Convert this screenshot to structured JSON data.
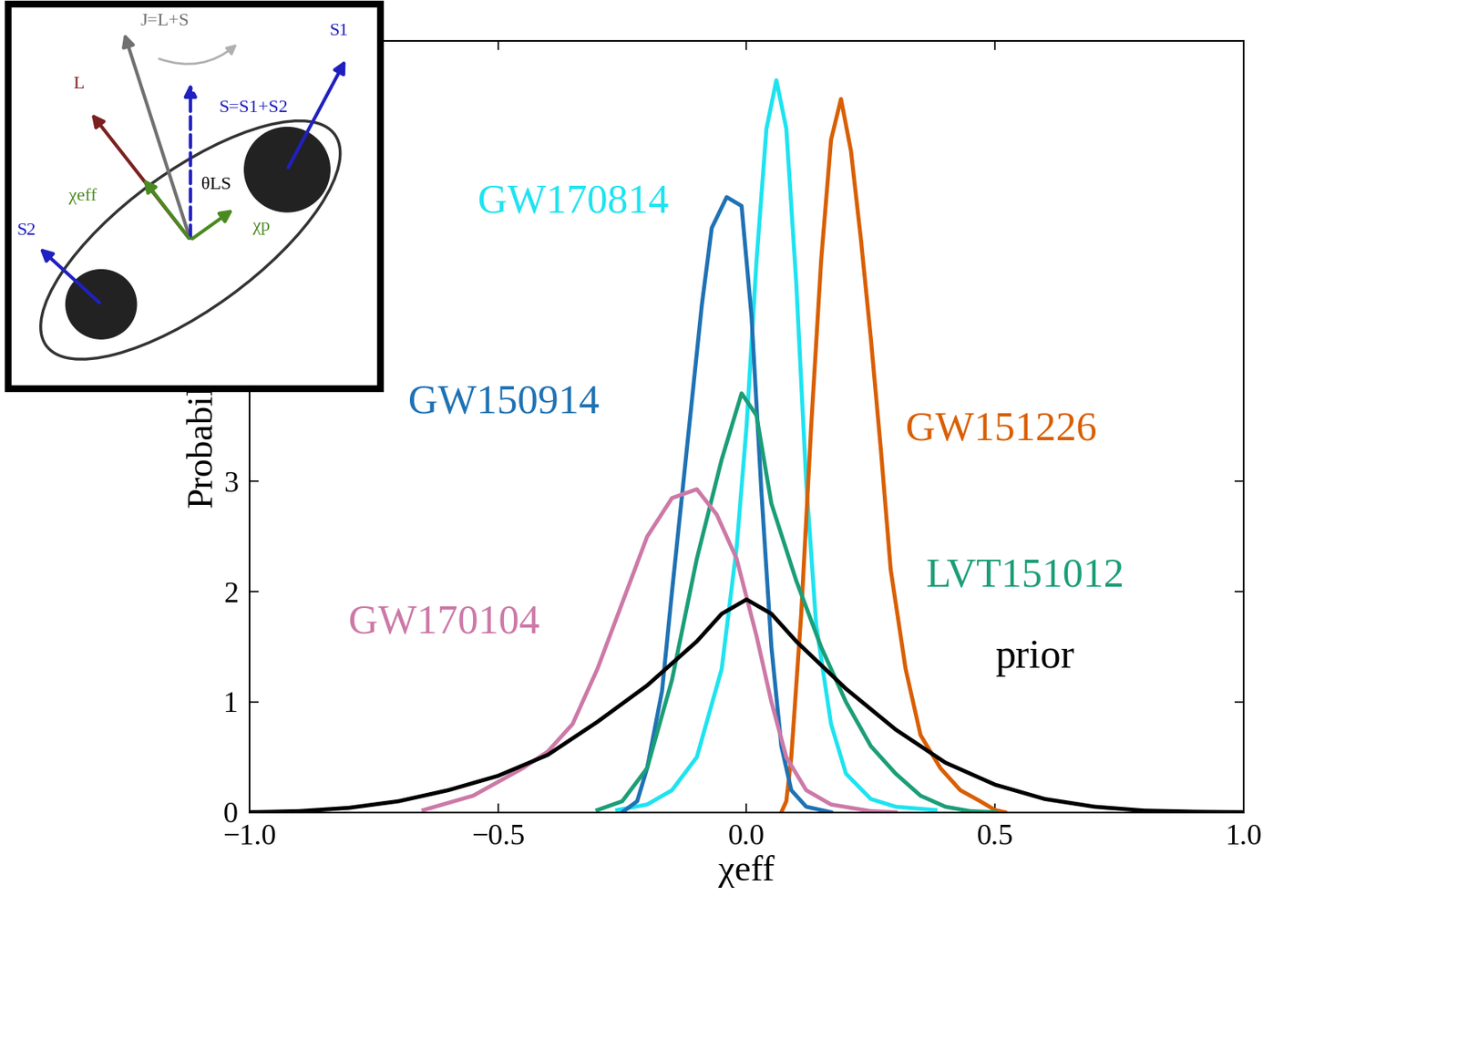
{
  "chart_data": {
    "type": "line",
    "x_label": "χeff",
    "y_label": "Probability",
    "xlim": [
      -1.0,
      1.0
    ],
    "xticks": [
      {
        "value": -1.0,
        "label": "−1.0"
      },
      {
        "value": -0.5,
        "label": "−0.5"
      },
      {
        "value": 0.0,
        "label": "0.0"
      },
      {
        "value": 0.5,
        "label": "0.5"
      },
      {
        "value": 1.0,
        "label": "1.0"
      }
    ],
    "ylim": [
      0,
      7
    ],
    "yticks": [
      0,
      1,
      2,
      3
    ],
    "series": [
      {
        "name": "GW170814",
        "color": "#1ee3f0",
        "x": [
          -0.26,
          -0.2,
          -0.15,
          -0.1,
          -0.05,
          -0.02,
          0.0,
          0.02,
          0.04,
          0.06,
          0.08,
          0.1,
          0.12,
          0.14,
          0.17,
          0.2,
          0.25,
          0.3,
          0.38
        ],
        "values": [
          0.02,
          0.07,
          0.2,
          0.5,
          1.3,
          2.4,
          3.5,
          5.0,
          6.2,
          6.64,
          6.2,
          4.8,
          3.0,
          1.7,
          0.8,
          0.35,
          0.12,
          0.05,
          0.02
        ]
      },
      {
        "name": "GW151226",
        "color": "#d95f02",
        "x": [
          0.07,
          0.08,
          0.09,
          0.11,
          0.13,
          0.15,
          0.17,
          0.19,
          0.21,
          0.23,
          0.25,
          0.27,
          0.29,
          0.32,
          0.35,
          0.39,
          0.43,
          0.47,
          0.5,
          0.52
        ],
        "values": [
          0,
          0.1,
          0.5,
          1.8,
          3.5,
          5.0,
          6.1,
          6.47,
          6.0,
          5.2,
          4.3,
          3.3,
          2.2,
          1.3,
          0.7,
          0.4,
          0.2,
          0.1,
          0.02,
          0
        ]
      },
      {
        "name": "GW150914",
        "color": "#1f72b4",
        "x": [
          -0.25,
          -0.22,
          -0.2,
          -0.17,
          -0.15,
          -0.12,
          -0.09,
          -0.07,
          -0.04,
          -0.01,
          0.01,
          0.03,
          0.05,
          0.07,
          0.09,
          0.12,
          0.17
        ],
        "values": [
          0,
          0.1,
          0.4,
          1.1,
          2.0,
          3.3,
          4.6,
          5.3,
          5.58,
          5.5,
          4.5,
          2.9,
          1.5,
          0.6,
          0.2,
          0.05,
          0
        ]
      },
      {
        "name": "LVT151012",
        "color": "#1b9e77",
        "x": [
          -0.3,
          -0.25,
          -0.2,
          -0.15,
          -0.1,
          -0.05,
          -0.01,
          0.02,
          0.05,
          0.1,
          0.15,
          0.2,
          0.25,
          0.3,
          0.35,
          0.4,
          0.45,
          0.5
        ],
        "values": [
          0.02,
          0.1,
          0.4,
          1.2,
          2.3,
          3.2,
          3.8,
          3.6,
          2.8,
          2.1,
          1.5,
          1.0,
          0.6,
          0.35,
          0.15,
          0.05,
          0.01,
          0
        ]
      },
      {
        "name": "GW170104",
        "color": "#cc79a7",
        "x": [
          -0.65,
          -0.55,
          -0.45,
          -0.4,
          -0.35,
          -0.3,
          -0.25,
          -0.2,
          -0.15,
          -0.1,
          -0.06,
          -0.02,
          0.02,
          0.05,
          0.08,
          0.12,
          0.17,
          0.25,
          0.3
        ],
        "values": [
          0.02,
          0.15,
          0.4,
          0.55,
          0.8,
          1.3,
          1.9,
          2.5,
          2.85,
          2.93,
          2.7,
          2.3,
          1.6,
          1.0,
          0.5,
          0.2,
          0.07,
          0.01,
          0
        ]
      },
      {
        "name": "prior",
        "color": "#000000",
        "x": [
          -1.0,
          -0.9,
          -0.8,
          -0.7,
          -0.6,
          -0.5,
          -0.4,
          -0.3,
          -0.2,
          -0.1,
          -0.05,
          0.0,
          0.05,
          0.1,
          0.2,
          0.3,
          0.4,
          0.5,
          0.6,
          0.7,
          0.8,
          0.9,
          1.0
        ],
        "values": [
          0,
          0.01,
          0.04,
          0.1,
          0.2,
          0.33,
          0.52,
          0.82,
          1.15,
          1.55,
          1.8,
          1.93,
          1.8,
          1.55,
          1.12,
          0.75,
          0.45,
          0.25,
          0.12,
          0.05,
          0.015,
          0.005,
          0
        ]
      }
    ]
  },
  "inset": {
    "labels": [
      "J=L+S",
      "L",
      "S=S1+S2",
      "S1",
      "S2",
      "χeff",
      "θLS",
      "χp"
    ]
  }
}
